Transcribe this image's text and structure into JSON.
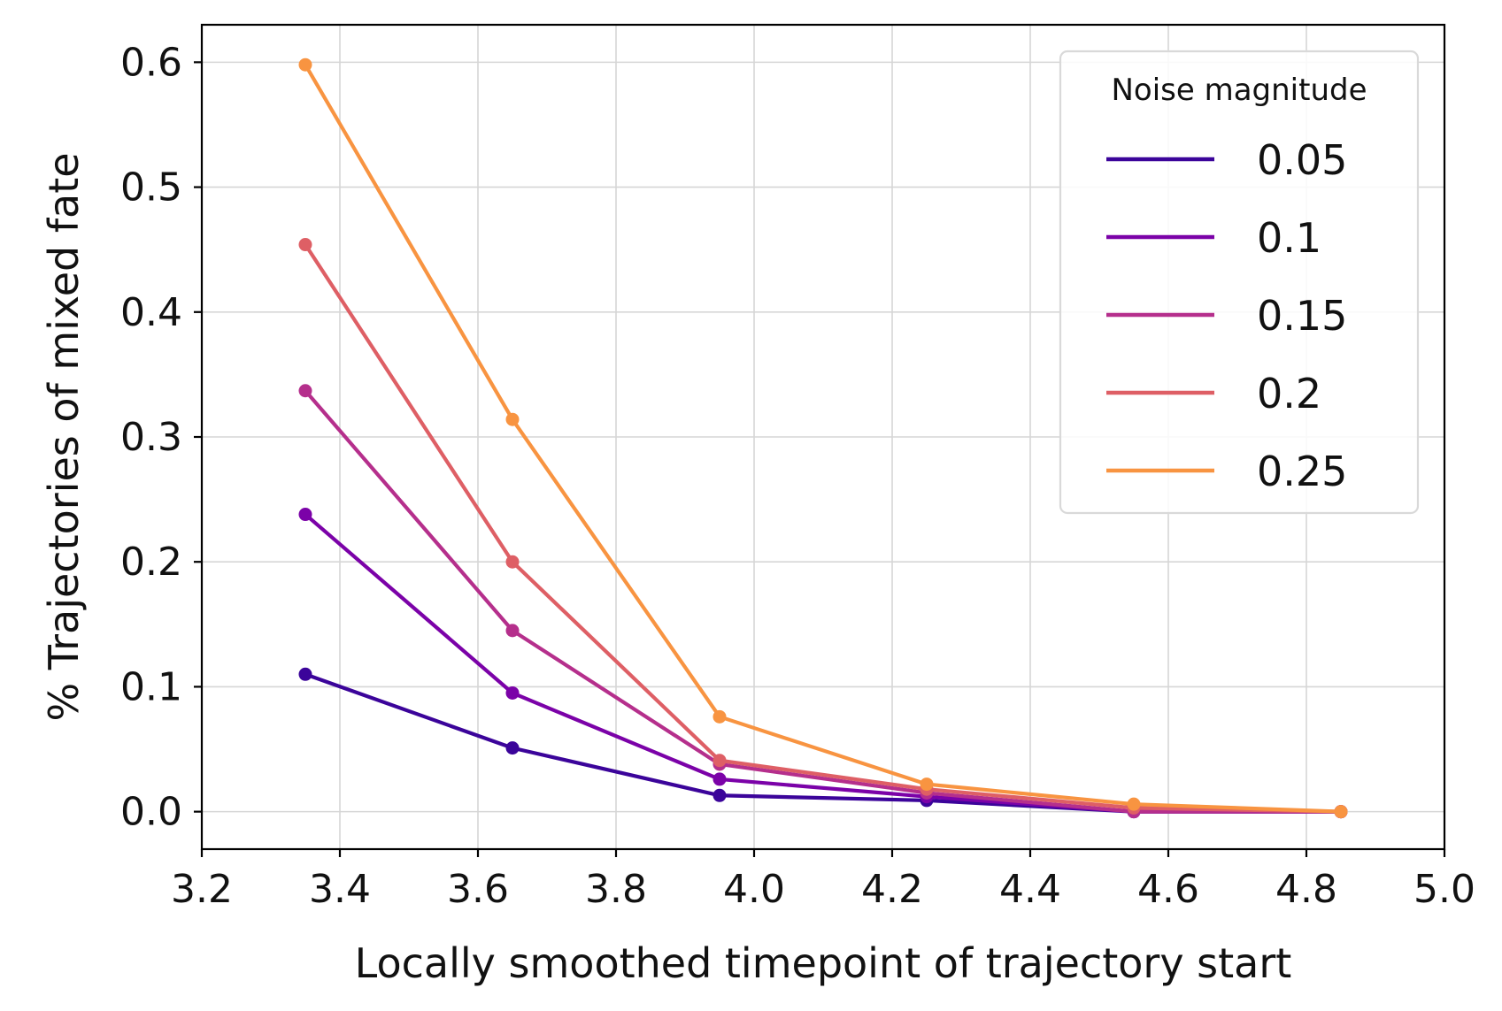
{
  "chart_data": {
    "type": "line",
    "title": "",
    "xlabel": "Locally smoothed timepoint of trajectory start",
    "ylabel": "% Trajectories of mixed fate",
    "xlim": [
      3.2,
      5.0
    ],
    "ylim": [
      -0.03,
      0.63
    ],
    "xticks": [
      3.2,
      3.4,
      3.6,
      3.8,
      4.0,
      4.2,
      4.4,
      4.6,
      4.8,
      5.0
    ],
    "xtick_labels": [
      "3.2",
      "3.4",
      "3.6",
      "3.8",
      "4.0",
      "4.2",
      "4.4",
      "4.6",
      "4.8",
      "5.0"
    ],
    "yticks": [
      0.0,
      0.1,
      0.2,
      0.3,
      0.4,
      0.5,
      0.6
    ],
    "ytick_labels": [
      "0.0",
      "0.1",
      "0.2",
      "0.3",
      "0.4",
      "0.5",
      "0.6"
    ],
    "grid": true,
    "legend": {
      "title": "Noise magnitude",
      "position": "top-right"
    },
    "x": [
      3.35,
      3.65,
      3.95,
      4.25,
      4.55,
      4.85
    ],
    "series": [
      {
        "name": "0.05",
        "color": "#3b049a",
        "values": [
          0.11,
          0.051,
          0.013,
          0.009,
          0.0,
          0.0
        ]
      },
      {
        "name": "0.1",
        "color": "#7b02a8",
        "values": [
          0.238,
          0.095,
          0.026,
          0.012,
          0.0,
          0.0
        ]
      },
      {
        "name": "0.15",
        "color": "#b52f8c",
        "values": [
          0.337,
          0.145,
          0.038,
          0.015,
          0.0,
          0.0
        ]
      },
      {
        "name": "0.2",
        "color": "#de5f65",
        "values": [
          0.454,
          0.2,
          0.041,
          0.018,
          0.003,
          0.0
        ]
      },
      {
        "name": "0.25",
        "color": "#f89441",
        "values": [
          0.598,
          0.314,
          0.076,
          0.022,
          0.006,
          0.0
        ]
      }
    ]
  }
}
